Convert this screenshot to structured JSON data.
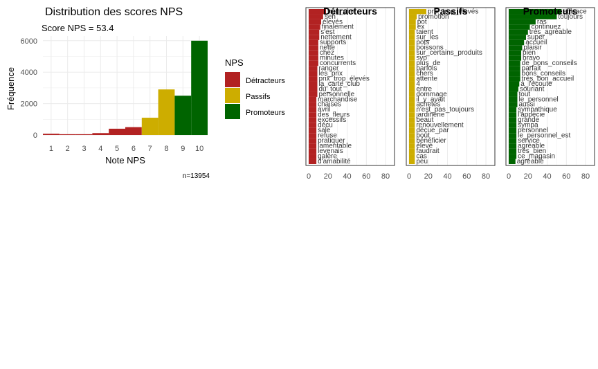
{
  "colors": {
    "detracteurs": "#b22222",
    "passifs": "#cdad00",
    "promoteurs": "#006400",
    "grid": "#ebebeb",
    "axis_text": "#4d4d4d",
    "word_text": "#333333"
  },
  "chart_data": [
    {
      "type": "bar",
      "title": "Distribution des scores NPS",
      "subtitle": "Score NPS = 53.4",
      "xlabel": "Note NPS",
      "ylabel": "Fréquence",
      "caption": "n=13954",
      "categories": [
        "1",
        "2",
        "3",
        "4",
        "5",
        "6",
        "7",
        "8",
        "9",
        "10"
      ],
      "values": [
        80,
        50,
        50,
        120,
        400,
        500,
        1100,
        2900,
        2500,
        6000
      ],
      "groups": [
        "Détracteurs",
        "Détracteurs",
        "Détracteurs",
        "Détracteurs",
        "Détracteurs",
        "Détracteurs",
        "Passifs",
        "Passifs",
        "Promoteurs",
        "Promoteurs"
      ],
      "ylim": [
        0,
        6300
      ],
      "yticks": [
        0,
        2000,
        4000,
        6000
      ],
      "grid": true,
      "legend": {
        "title": "NPS",
        "position": "right",
        "items": [
          "Détracteurs",
          "Passifs",
          "Promoteurs"
        ]
      }
    },
    {
      "type": "bar",
      "orientation": "horizontal",
      "title": "Détracteurs",
      "xlim": [
        0,
        85
      ],
      "xticks": [
        0,
        20,
        40,
        60,
        80
      ],
      "words": [
        "trop_cher",
        "sen",
        "élevés",
        "finalement",
        "s'est",
        "nettement",
        "supports",
        "nette",
        "chez",
        "minutes",
        "concurrents",
        "ranger",
        "les_prix",
        "prix_trop_élevés",
        "la_carte_club",
        "du_tout",
        "personnelle",
        "marchandise",
        "chaises",
        "avril",
        "des_fleurs",
        "excessifs",
        "décu",
        "sale",
        "refuse",
        "pratiquer",
        "lamentable",
        "levenais",
        "galère",
        "d'amabilité"
      ],
      "values": [
        18,
        15,
        13,
        12,
        11,
        11,
        10,
        10,
        10,
        10,
        10,
        9,
        9,
        9,
        9,
        9,
        9,
        8,
        8,
        8,
        8,
        8,
        8,
        8,
        8,
        8,
        8,
        8,
        8,
        8
      ]
    },
    {
      "type": "bar",
      "orientation": "horizontal",
      "title": "Passifs",
      "xlim": [
        0,
        85
      ],
      "xticks": [
        0,
        20,
        40,
        60,
        80
      ],
      "words": [
        "prix_trop_élevés",
        "promotion",
        "pot",
        "ex",
        "taient",
        "sur_les",
        "pots",
        "poissons",
        "sur_certains_produits",
        "svp",
        "plus_de",
        "parfois",
        "chers",
        "attente",
        "4",
        "entre",
        "dommage",
        "il_y_avait",
        "achetés",
        "n'est_pas_toujours",
        "jardinerie",
        "beaut",
        "renouvellement",
        "déçue_par",
        "bout",
        "bénéficier",
        "élevé",
        "faudrait",
        "cas",
        "peu"
      ],
      "values": [
        18,
        8,
        7,
        7,
        6,
        6,
        6,
        6,
        6,
        6,
        6,
        6,
        6,
        6,
        6,
        6,
        6,
        6,
        6,
        6,
        6,
        6,
        6,
        6,
        6,
        6,
        6,
        6,
        6,
        6
      ]
    },
    {
      "type": "bar",
      "orientation": "horizontal",
      "title": "Promoteurs",
      "xlim": [
        0,
        85
      ],
      "xticks": [
        0,
        20,
        40,
        60,
        80
      ],
      "words": [
        "efficace",
        "toujours",
        "ras",
        "continuez",
        "très_agréable",
        "super",
        "accueil",
        "plaisir",
        "bien",
        "bravo",
        "de_bons_conseils",
        "parfait",
        "bons_conseils",
        "très_bon_accueil",
        "à_l'écoute",
        "souriant",
        "tout",
        "le_personnel",
        "aussi",
        "sympathique",
        "l'appécie",
        "grande",
        "sympa",
        "personnel",
        "le_personnel_est",
        "service",
        "agréable",
        "très_bien",
        "ce_magasin",
        "agréable"
      ],
      "values": [
        55,
        50,
        28,
        22,
        20,
        18,
        16,
        14,
        13,
        13,
        12,
        12,
        12,
        12,
        11,
        10,
        9,
        9,
        9,
        8,
        8,
        8,
        8,
        8,
        8,
        8,
        8,
        8,
        8,
        7
      ]
    }
  ]
}
